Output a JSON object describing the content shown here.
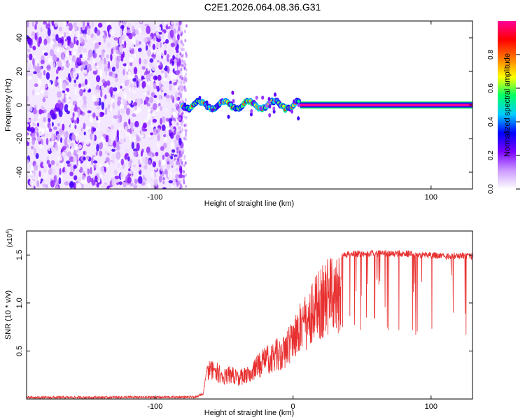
{
  "page_title": "C2E1.2026.064.08.36.G31",
  "chart_data": [
    {
      "type": "heatmap",
      "title": "C2E1.2026.064.08.36.G31",
      "xlabel": "Height of straight line (km)",
      "ylabel": "Frequency (Hz)",
      "xlim": [
        -193,
        130
      ],
      "ylim": [
        -50,
        50
      ],
      "x_ticks": [
        -100,
        100
      ],
      "x_tick_labels": [
        "-100",
        "100"
      ],
      "y_ticks": [
        -40,
        -20,
        0,
        20,
        40
      ],
      "y_tick_labels": [
        "-40",
        "-20",
        "0",
        "20",
        "40"
      ],
      "noise_region_x": [
        -193,
        -80
      ],
      "transition_region_x": [
        -80,
        5
      ],
      "signal_line": {
        "x": [
          5,
          130
        ],
        "frequency": 0,
        "amplitude": 1.0
      },
      "colorbar": {
        "label": "Normalized spectral amplitude",
        "range": [
          0,
          1
        ],
        "ticks": [
          0.0,
          0.2,
          0.4,
          0.6,
          0.8
        ],
        "tick_labels": [
          "0.0",
          "0.2",
          "0.4",
          "0.6",
          "0.8"
        ],
        "colors": [
          "#ffffff",
          "#cc99ff",
          "#7a00ff",
          "#0000ff",
          "#00ccff",
          "#00ff66",
          "#ffff00",
          "#ff7700",
          "#ff0000",
          "#ff0099"
        ]
      }
    },
    {
      "type": "line",
      "xlabel": "Height of straight line (km)",
      "ylabel": "SNR (10 * v/v)",
      "scale_label": "(x10",
      "scale_exponent": "4",
      "xlim": [
        -193,
        130
      ],
      "ylim": [
        0,
        17500
      ],
      "x_ticks": [
        -100,
        0,
        100
      ],
      "x_tick_labels": [
        "-100",
        "0",
        "100"
      ],
      "y_ticks": [
        5000,
        10000,
        15000
      ],
      "y_tick_labels": [
        "0.5",
        "1.0",
        "1.5"
      ],
      "color": "#e83030",
      "envelope": {
        "x": [
          -193,
          -70,
          -65,
          -62,
          -60,
          -55,
          -50,
          -45,
          -40,
          -35,
          -30,
          -25,
          -20,
          -15,
          -10,
          -5,
          0,
          5,
          10,
          15,
          20,
          25,
          30,
          40,
          50,
          60,
          70,
          80,
          90,
          100,
          110,
          120,
          130
        ],
        "y": [
          150,
          200,
          600,
          3500,
          4200,
          3800,
          3200,
          3500,
          3000,
          3300,
          3600,
          4800,
          5500,
          6000,
          6500,
          7200,
          8800,
          10000,
          11000,
          12500,
          13800,
          14600,
          15100,
          15400,
          15500,
          15500,
          15500,
          15500,
          15400,
          15300,
          15200,
          15300,
          15200
        ]
      }
    }
  ]
}
